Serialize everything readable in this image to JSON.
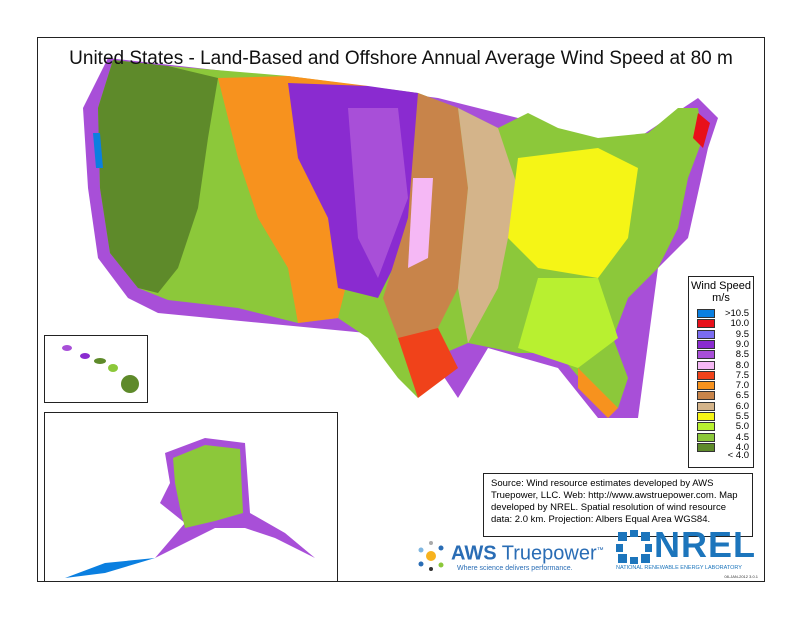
{
  "title": "United States - Land-Based and Offshore Annual Average Wind Speed at 80 m",
  "legend": {
    "title": "Wind Speed",
    "unit": "m/s",
    "items": [
      {
        "label": ">10.5",
        "color": "#0a7fe0"
      },
      {
        "label": "10.0",
        "color": "#e8101a"
      },
      {
        "label": "9.5",
        "color": "#7b6cf0"
      },
      {
        "label": "9.0",
        "color": "#8a2bd0"
      },
      {
        "label": "8.5",
        "color": "#a84fd8"
      },
      {
        "label": "8.0",
        "color": "#f5b8f5"
      },
      {
        "label": "7.5",
        "color": "#f0421a"
      },
      {
        "label": "7.0",
        "color": "#f7921e"
      },
      {
        "label": "6.5",
        "color": "#c8844a"
      },
      {
        "label": "6.0",
        "color": "#d4b48a"
      },
      {
        "label": "5.5",
        "color": "#f5f516"
      },
      {
        "label": "5.0",
        "color": "#b8f030"
      },
      {
        "label": "4.5",
        "color": "#8cc83a"
      },
      {
        "label": "4.0",
        "color": "#5e8a2a"
      }
    ],
    "below_label": "< 4.0"
  },
  "source_text": "Source: Wind resource estimates developed by AWS Truepower, LLC.  Web: http://www.awstruepower.com. Map developed by NREL.  Spatial resolution of wind resource data: 2.0 km. Projection: Albers Equal Area WGS84.",
  "logos": {
    "aws": {
      "name_bold": "AWS",
      "name": " Truepower",
      "tm": "™",
      "tagline": "Where science delivers performance."
    },
    "nrel": {
      "name": "NREL",
      "tagline": "NATIONAL RENEWABLE ENERGY LABORATORY"
    }
  },
  "stamp": "08-JAN-2012 3.0.1"
}
